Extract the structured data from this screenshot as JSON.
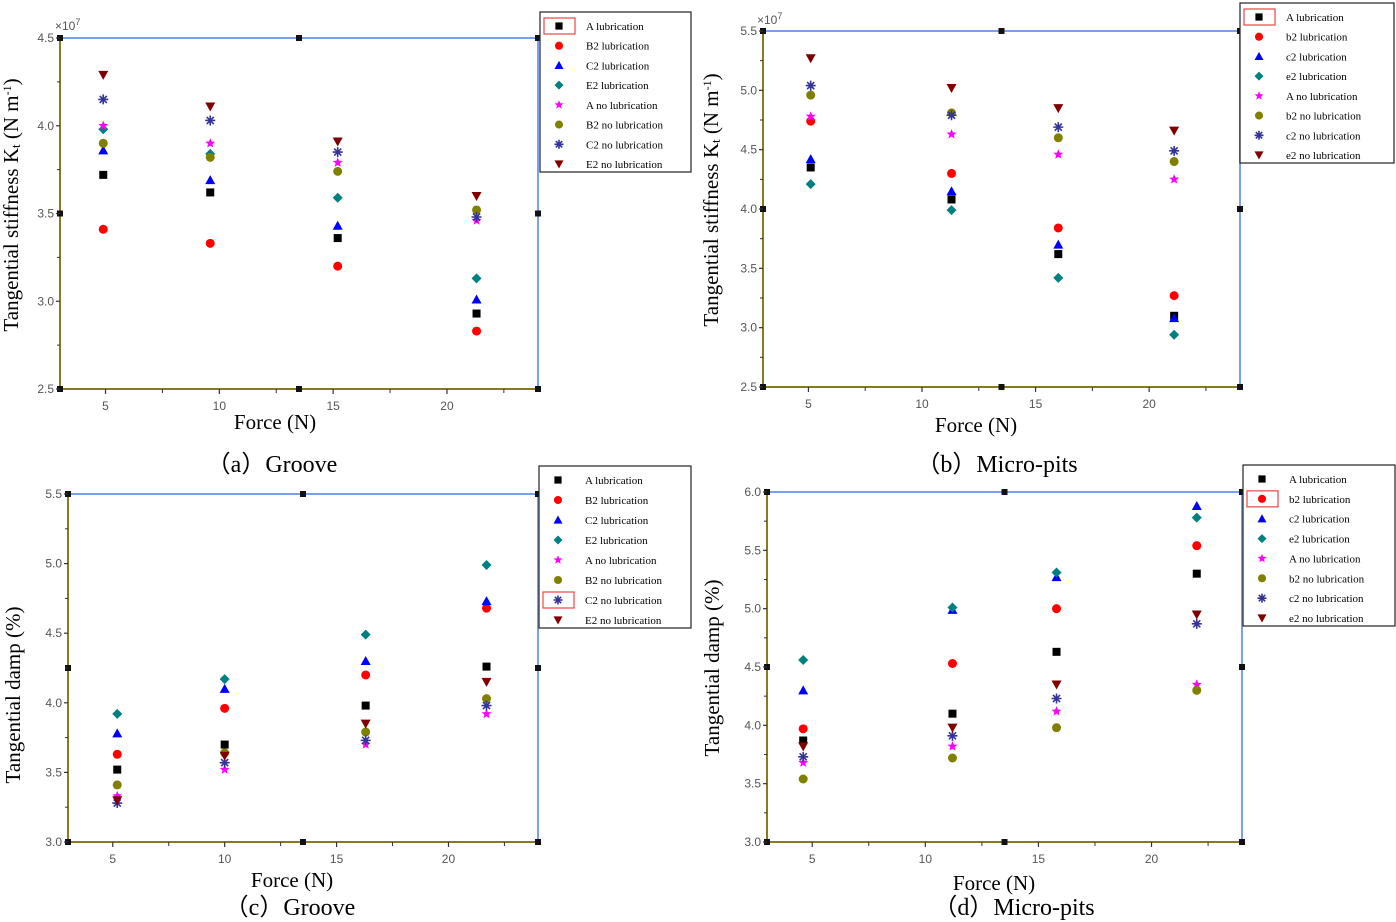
{
  "colors": {
    "axis_left_bottom": "#8a7a1e",
    "axis_top_right": "#7b9ff0",
    "highlight": "#ee4444"
  },
  "chart_data": [
    {
      "type": "scatter",
      "caption": "（a）Groove",
      "xlabel": "Force (N)",
      "ylabel_parts": [
        "Tangential stiffness K",
        "t",
        " (N m",
        "-1",
        ")"
      ],
      "y_multiplier": [
        "×10",
        "7"
      ],
      "xlim": [
        3,
        24
      ],
      "ylim": [
        2.5,
        4.5
      ],
      "xticks": [
        5,
        10,
        15,
        20
      ],
      "yticks": [
        2.5,
        3.0,
        3.5,
        4.0,
        4.5
      ],
      "grid": false,
      "legend": "top-right",
      "legend_highlight": 0,
      "x": [
        4.9,
        9.6,
        15.2,
        21.3
      ],
      "series": [
        {
          "name": "A    lubrication",
          "marker": "square",
          "color": "#000000",
          "values": [
            3.72,
            3.62,
            3.36,
            2.93
          ]
        },
        {
          "name": "B2   lubrication",
          "marker": "circle",
          "color": "#ff0000",
          "values": [
            3.41,
            3.33,
            3.2,
            2.83
          ]
        },
        {
          "name": "C2   lubrication",
          "marker": "triangle-up",
          "color": "#0000ff",
          "values": [
            3.86,
            3.69,
            3.43,
            3.01
          ]
        },
        {
          "name": "E2   lubrication",
          "marker": "diamond",
          "color": "#008080",
          "values": [
            3.98,
            3.84,
            3.59,
            3.13
          ]
        },
        {
          "name": "A no lubrication",
          "marker": "star",
          "color": "#ff00ff",
          "values": [
            4.0,
            3.9,
            3.79,
            3.46
          ]
        },
        {
          "name": "B2  no lubrication",
          "marker": "circle",
          "color": "#808000",
          "values": [
            3.9,
            3.82,
            3.74,
            3.52
          ]
        },
        {
          "name": "C2  no lubrication",
          "marker": "asterisk",
          "color": "#333399",
          "values": [
            4.15,
            4.03,
            3.85,
            3.48
          ]
        },
        {
          "name": "E2  no lubrication",
          "marker": "triangle-down",
          "color": "#800000",
          "values": [
            4.29,
            4.11,
            3.91,
            3.6
          ]
        }
      ]
    },
    {
      "type": "scatter",
      "caption": "（b）Micro-pits",
      "xlabel": "Force (N)",
      "ylabel_parts": [
        "Tangential stiffness K",
        "t",
        " (N m",
        "-1",
        ")"
      ],
      "y_multiplier": [
        "×10",
        "7"
      ],
      "xlim": [
        3,
        24
      ],
      "ylim": [
        2.5,
        5.5
      ],
      "xticks": [
        5,
        10,
        15,
        20
      ],
      "yticks": [
        2.5,
        3.0,
        3.5,
        4.0,
        4.5,
        5.0,
        5.5
      ],
      "grid": false,
      "legend": "top-right",
      "legend_highlight": 0,
      "x": [
        5.1,
        11.3,
        16.0,
        21.1
      ],
      "series": [
        {
          "name": "A    lubrication",
          "marker": "square",
          "color": "#000000",
          "values": [
            4.35,
            4.08,
            3.62,
            3.1
          ]
        },
        {
          "name": "b2   lubrication",
          "marker": "circle",
          "color": "#ff0000",
          "values": [
            4.74,
            4.3,
            3.84,
            3.27
          ]
        },
        {
          "name": "c2   lubrication",
          "marker": "triangle-up",
          "color": "#0000ff",
          "values": [
            4.42,
            4.15,
            3.7,
            3.08
          ]
        },
        {
          "name": "e2   lubrication",
          "marker": "diamond",
          "color": "#008080",
          "values": [
            4.21,
            3.99,
            3.42,
            2.94
          ]
        },
        {
          "name": "A no lubrication",
          "marker": "star",
          "color": "#ff00ff",
          "values": [
            4.78,
            4.63,
            4.46,
            4.25
          ]
        },
        {
          "name": "b2  no lubrication",
          "marker": "circle",
          "color": "#808000",
          "values": [
            4.96,
            4.81,
            4.6,
            4.4
          ]
        },
        {
          "name": "c2  no lubrication",
          "marker": "asterisk",
          "color": "#333399",
          "values": [
            5.04,
            4.79,
            4.69,
            4.49
          ]
        },
        {
          "name": "e2  no lubrication",
          "marker": "triangle-down",
          "color": "#800000",
          "values": [
            5.27,
            5.02,
            4.85,
            4.66
          ]
        }
      ]
    },
    {
      "type": "scatter",
      "caption": "（c）Groove",
      "xlabel": "Force (N)",
      "ylabel_parts": [
        "Tangential damp (%)"
      ],
      "xlim": [
        3,
        24
      ],
      "ylim": [
        3.0,
        5.5
      ],
      "xticks": [
        5,
        10,
        15,
        20
      ],
      "yticks": [
        3.0,
        3.5,
        4.0,
        4.5,
        5.0,
        5.5
      ],
      "grid": false,
      "legend": "top-right",
      "legend_highlight": 6,
      "x": [
        5.2,
        10.0,
        16.3,
        21.7
      ],
      "series": [
        {
          "name": "A    lubrication",
          "marker": "square",
          "color": "#000000",
          "values": [
            3.52,
            3.7,
            3.98,
            4.26
          ]
        },
        {
          "name": "B2   lubrication",
          "marker": "circle",
          "color": "#ff0000",
          "values": [
            3.63,
            3.96,
            4.2,
            4.68
          ]
        },
        {
          "name": "C2   lubrication",
          "marker": "triangle-up",
          "color": "#0000ff",
          "values": [
            3.78,
            4.1,
            4.3,
            4.73
          ]
        },
        {
          "name": "E2   lubrication",
          "marker": "diamond",
          "color": "#008080",
          "values": [
            3.92,
            4.17,
            4.49,
            4.99
          ]
        },
        {
          "name": "A no lubrication",
          "marker": "star",
          "color": "#ff00ff",
          "values": [
            3.33,
            3.52,
            3.7,
            3.92
          ]
        },
        {
          "name": "B2  no lubrication",
          "marker": "circle",
          "color": "#808000",
          "values": [
            3.41,
            3.64,
            3.79,
            4.03
          ]
        },
        {
          "name": "C2  no lubrication",
          "marker": "asterisk",
          "color": "#333399",
          "values": [
            3.28,
            3.57,
            3.73,
            3.98
          ]
        },
        {
          "name": "E2  no lubrication",
          "marker": "triangle-down",
          "color": "#800000",
          "values": [
            3.3,
            3.62,
            3.85,
            4.15
          ]
        }
      ]
    },
    {
      "type": "scatter",
      "caption": "（d）Micro-pits",
      "xlabel": "Force (N)",
      "ylabel_parts": [
        "Tangential damp (%)"
      ],
      "xlim": [
        3,
        24
      ],
      "ylim": [
        3.0,
        6.0
      ],
      "xticks": [
        5,
        10,
        15,
        20
      ],
      "yticks": [
        3.0,
        3.5,
        4.0,
        4.5,
        5.0,
        5.5,
        6.0
      ],
      "grid": false,
      "legend": "top-right",
      "legend_highlight": 1,
      "x": [
        4.6,
        11.2,
        15.8,
        22.0
      ],
      "series": [
        {
          "name": "A    lubrication",
          "marker": "square",
          "color": "#000000",
          "values": [
            3.87,
            4.1,
            4.63,
            5.3
          ]
        },
        {
          "name": "b2   lubrication",
          "marker": "circle",
          "color": "#ff0000",
          "values": [
            3.97,
            4.53,
            5.0,
            5.54
          ]
        },
        {
          "name": "c2   lubrication",
          "marker": "triangle-up",
          "color": "#0000ff",
          "values": [
            4.3,
            4.99,
            5.27,
            5.88
          ]
        },
        {
          "name": "e2   lubrication",
          "marker": "diamond",
          "color": "#008080",
          "values": [
            4.56,
            5.01,
            5.31,
            5.78
          ]
        },
        {
          "name": "A  no lubrication",
          "marker": "star",
          "color": "#ff00ff",
          "values": [
            3.68,
            3.82,
            4.12,
            4.35
          ]
        },
        {
          "name": "b2  no lubrication",
          "marker": "circle",
          "color": "#808000",
          "values": [
            3.54,
            3.72,
            3.98,
            4.3
          ]
        },
        {
          "name": "c2  no lubrication",
          "marker": "asterisk",
          "color": "#333399",
          "values": [
            3.73,
            3.91,
            4.23,
            4.87
          ]
        },
        {
          "name": "e2  no lubrication",
          "marker": "triangle-down",
          "color": "#800000",
          "values": [
            3.82,
            3.98,
            4.35,
            4.95
          ]
        }
      ]
    }
  ]
}
